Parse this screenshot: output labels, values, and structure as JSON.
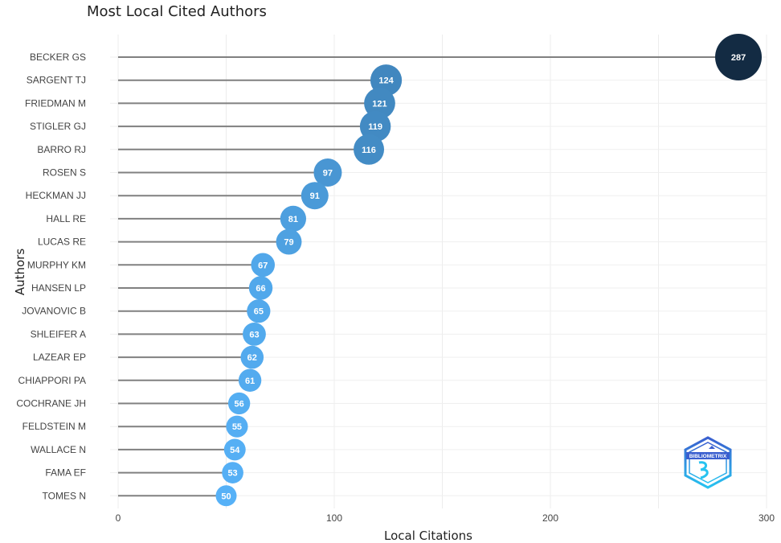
{
  "chart_data": {
    "type": "lollipop",
    "title": "Most Local Cited Authors",
    "xlabel": "Local Citations",
    "ylabel": "Authors",
    "xlim": [
      0,
      300
    ],
    "xticks": [
      0,
      100,
      200,
      300
    ],
    "grid": true,
    "categories": [
      "BECKER GS",
      "SARGENT TJ",
      "FRIEDMAN M",
      "STIGLER GJ",
      "BARRO RJ",
      "ROSEN S",
      "HECKMAN JJ",
      "HALL RE",
      "LUCAS RE",
      "MURPHY KM",
      "HANSEN LP",
      "JOVANOVIC B",
      "SHLEIFER A",
      "LAZEAR EP",
      "CHIAPPORI PA",
      "COCHRANE JH",
      "FELDSTEIN M",
      "WALLACE N",
      "FAMA EF",
      "TOMES N"
    ],
    "values": [
      287,
      124,
      121,
      119,
      116,
      97,
      91,
      81,
      79,
      67,
      66,
      65,
      63,
      62,
      61,
      56,
      55,
      54,
      53,
      50
    ],
    "colors": {
      "low": "#56b1f7",
      "high": "#132b43",
      "stem": "#808080"
    }
  },
  "logo": {
    "text": "BIBLIOMETRIX"
  }
}
